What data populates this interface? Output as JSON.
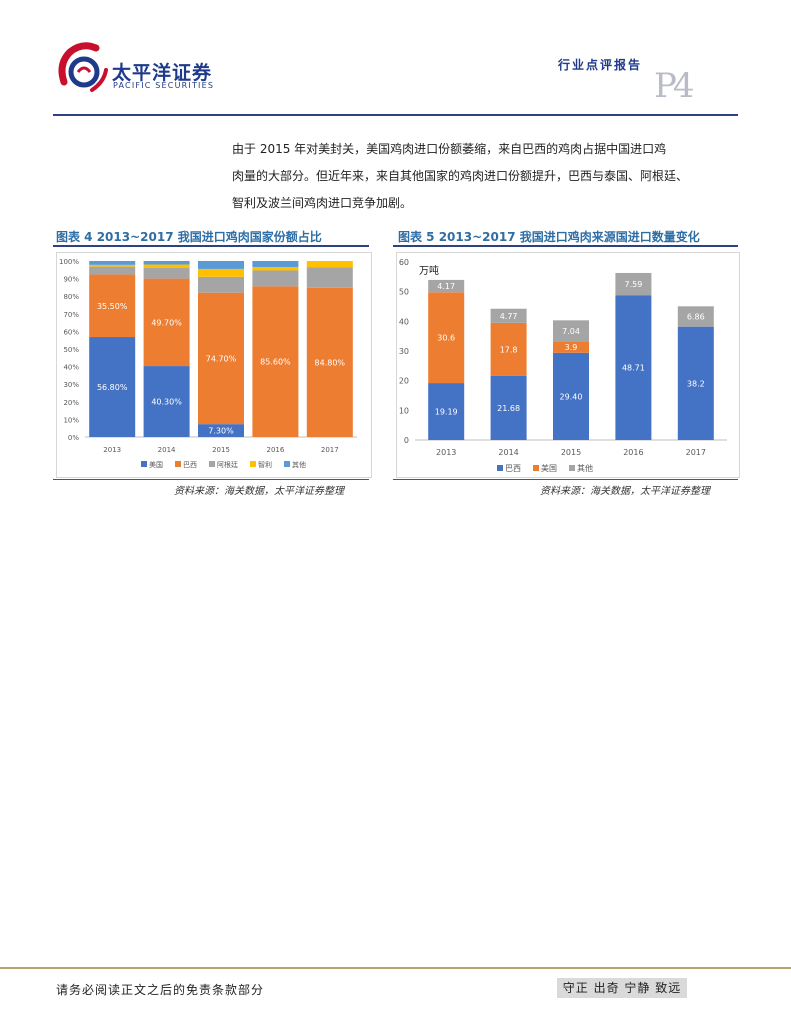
{
  "header": {
    "logo_cn": "太平洋证券",
    "logo_en": "PACIFIC SECURITIES",
    "report_type": "行业点评报告",
    "page_label": "P4"
  },
  "body": {
    "paragraph_lines": [
      "由于 2015 年对美封关，美国鸡肉进口份额萎缩，来自巴西的鸡肉占据中国进口鸡",
      "肉量的大部分。但近年来，来自其他国家的鸡肉进口份额提升，巴西与泰国、阿根廷、",
      "智利及波兰间鸡肉进口竞争加剧。"
    ]
  },
  "figures": [
    {
      "title": "图表 4 2013~2017 我国进口鸡肉国家份额占比",
      "source": "资料来源：海关数据，太平洋证券整理"
    },
    {
      "title": "图表 5 2013~2017 我国进口鸡肉来源国进口数量变化",
      "source": "资料来源：海关数据，太平洋证券整理"
    }
  ],
  "chart_data": [
    {
      "type": "bar",
      "stacked": true,
      "categories": [
        "2013",
        "2014",
        "2015",
        "2016",
        "2017"
      ],
      "series": [
        {
          "name": "美国",
          "color": "#4472c4",
          "values": [
            56.8,
            40.3,
            7.3,
            0.0,
            0.0
          ],
          "labels": [
            "56.80%",
            "40.30%",
            "7.30%",
            "",
            ""
          ]
        },
        {
          "name": "巴西",
          "color": "#ed7d31",
          "values": [
            35.5,
            49.7,
            74.7,
            85.6,
            84.8
          ],
          "labels": [
            "35.50%",
            "49.70%",
            "74.70%",
            "85.60%",
            "84.80%"
          ]
        },
        {
          "name": "阿根廷",
          "color": "#a5a5a5",
          "values": [
            4.5,
            6.0,
            9.0,
            9.0,
            11.5
          ],
          "labels": [
            "",
            "",
            "",
            "",
            ""
          ]
        },
        {
          "name": "智利",
          "color": "#ffc000",
          "values": [
            1.0,
            2.0,
            4.5,
            2.0,
            3.7
          ],
          "labels": [
            "",
            "",
            "",
            "",
            ""
          ]
        },
        {
          "name": "其他",
          "color": "#5b9bd5",
          "values": [
            2.2,
            2.0,
            4.5,
            3.4,
            0.0
          ],
          "labels": [
            "",
            "",
            "",
            "",
            ""
          ]
        }
      ],
      "ylim": [
        0,
        100
      ],
      "yticks": [
        "0%",
        "10%",
        "20%",
        "30%",
        "40%",
        "50%",
        "60%",
        "70%",
        "80%",
        "90%",
        "100%"
      ],
      "legend": "bottom",
      "grid": false
    },
    {
      "type": "bar",
      "stacked": true,
      "categories": [
        "2013",
        "2014",
        "2015",
        "2016",
        "2017"
      ],
      "unit_label": "万吨",
      "series": [
        {
          "name": "巴西",
          "color": "#4472c4",
          "values": [
            19.19,
            21.68,
            29.4,
            48.71,
            38.2
          ],
          "labels": [
            "19.19",
            "21.68",
            "29.40",
            "48.71",
            "38.2"
          ]
        },
        {
          "name": "美国",
          "color": "#ed7d31",
          "values": [
            30.6,
            17.8,
            3.9,
            0,
            0
          ],
          "labels": [
            "30.6",
            "17.8",
            "3.9",
            "",
            ""
          ]
        },
        {
          "name": "其他",
          "color": "#a5a5a5",
          "values": [
            4.17,
            4.77,
            7.04,
            7.59,
            6.86
          ],
          "labels": [
            "4.17",
            "4.77",
            "7.04",
            "7.59",
            "6.86"
          ]
        }
      ],
      "ylim": [
        0,
        60
      ],
      "yticks": [
        "0",
        "10",
        "20",
        "30",
        "40",
        "50",
        "60"
      ],
      "legend": "bottom",
      "grid": false
    }
  ],
  "footer": {
    "disclaimer": "请务必阅读正文之后的免责条款部分",
    "motto": "守正 出奇 宁静 致远"
  }
}
